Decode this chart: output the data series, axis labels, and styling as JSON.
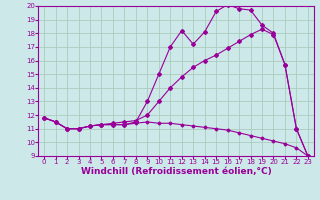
{
  "background_color": "#cce8e8",
  "grid_color": "#aaccbb",
  "line_color": "#990099",
  "marker_color": "#990099",
  "xlim": [
    -0.5,
    23.5
  ],
  "ylim": [
    9,
    20
  ],
  "xlabel": "Windchill (Refroidissement éolien,°C)",
  "xlabel_fontsize": 6.5,
  "yticks": [
    9,
    10,
    11,
    12,
    13,
    14,
    15,
    16,
    17,
    18,
    19,
    20
  ],
  "xticks": [
    0,
    1,
    2,
    3,
    4,
    5,
    6,
    7,
    8,
    9,
    10,
    11,
    12,
    13,
    14,
    15,
    16,
    17,
    18,
    19,
    20,
    21,
    22,
    23
  ],
  "line1_x": [
    0,
    1,
    2,
    3,
    4,
    5,
    6,
    7,
    8,
    9,
    10,
    11,
    12,
    13,
    14,
    15,
    16,
    17,
    18,
    19,
    20,
    21,
    22,
    23
  ],
  "line1_y": [
    11.8,
    11.5,
    11.0,
    11.0,
    11.2,
    11.3,
    11.3,
    11.3,
    11.5,
    13.0,
    15.0,
    17.0,
    18.2,
    17.2,
    18.1,
    19.6,
    20.1,
    19.8,
    19.7,
    18.6,
    18.0,
    15.7,
    11.0,
    9.0
  ],
  "line2_x": [
    0,
    1,
    2,
    3,
    4,
    5,
    6,
    7,
    8,
    9,
    10,
    11,
    12,
    13,
    14,
    15,
    16,
    17,
    18,
    19,
    20,
    21,
    22,
    23
  ],
  "line2_y": [
    11.8,
    11.5,
    11.0,
    11.0,
    11.2,
    11.3,
    11.4,
    11.5,
    11.6,
    12.0,
    13.0,
    14.0,
    14.8,
    15.5,
    16.0,
    16.4,
    16.9,
    17.4,
    17.9,
    18.3,
    17.9,
    15.7,
    11.0,
    9.0
  ],
  "line3_x": [
    0,
    1,
    2,
    3,
    4,
    5,
    6,
    7,
    8,
    9,
    10,
    11,
    12,
    13,
    14,
    15,
    16,
    17,
    18,
    19,
    20,
    21,
    22,
    23
  ],
  "line3_y": [
    11.8,
    11.5,
    11.0,
    11.0,
    11.2,
    11.3,
    11.3,
    11.3,
    11.4,
    11.5,
    11.4,
    11.4,
    11.3,
    11.2,
    11.1,
    11.0,
    10.9,
    10.7,
    10.5,
    10.3,
    10.1,
    9.9,
    9.6,
    9.0
  ]
}
